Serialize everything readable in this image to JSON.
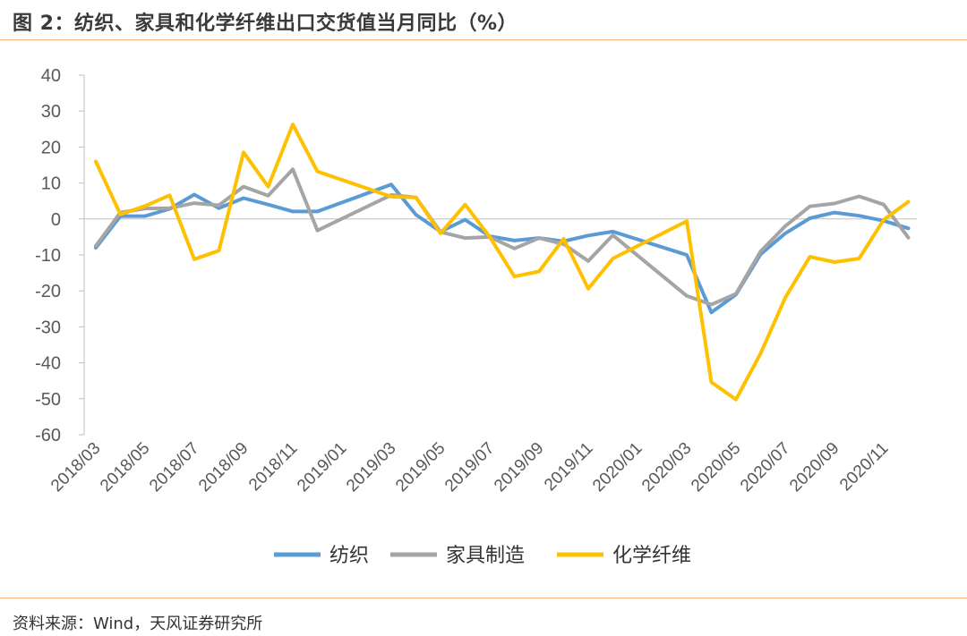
{
  "header": {
    "title": "图 2：纺织、家具和化学纤维出口交货值当月同比（%）"
  },
  "footer": {
    "source": "资料来源：Wind，天风证券研究所"
  },
  "chart_data": {
    "type": "line",
    "title": "图 2：纺织、家具和化学纤维出口交货值当月同比（%）",
    "ylim": [
      -60,
      40
    ],
    "yticks": [
      40,
      30,
      20,
      10,
      0,
      -10,
      -20,
      -30,
      -40,
      -50,
      -60
    ],
    "grid": false,
    "legend_position": "bottom",
    "x": [
      "2018/03",
      "2018/04",
      "2018/05",
      "2018/06",
      "2018/07",
      "2018/08",
      "2018/09",
      "2018/10",
      "2018/11",
      "2018/12",
      "2019/01",
      "2019/02",
      "2019/03",
      "2019/04",
      "2019/05",
      "2019/06",
      "2019/07",
      "2019/08",
      "2019/09",
      "2019/10",
      "2019/11",
      "2019/12",
      "2020/01",
      "2020/02",
      "2020/03",
      "2020/04",
      "2020/05",
      "2020/06",
      "2020/07",
      "2020/08",
      "2020/09",
      "2020/10",
      "2020/11",
      "2020/12"
    ],
    "xtick_labels": [
      "2018/03",
      "2018/05",
      "2018/07",
      "2018/09",
      "2018/11",
      "2019/01",
      "2019/03",
      "2019/05",
      "2019/07",
      "2019/09",
      "2019/11",
      "2020/01",
      "2020/03",
      "2020/05",
      "2020/07",
      "2020/09",
      "2020/11"
    ],
    "series": [
      {
        "name": "纺织",
        "color": "#5b9bd5",
        "values": [
          -8,
          0.8,
          0.8,
          2.8,
          6.8,
          3.0,
          5.8,
          4.0,
          2.1,
          2.1,
          null,
          null,
          9.6,
          1.2,
          -3.5,
          -0.2,
          -4.8,
          -6.0,
          -5.3,
          -6.2,
          -4.6,
          -3.5,
          null,
          null,
          -10.0,
          -26.0,
          -21.0,
          -9.8,
          -4.0,
          0.2,
          1.8,
          0.9,
          -0.5,
          -2.6
        ]
      },
      {
        "name": "家具制造",
        "color": "#a5a5a5",
        "values": [
          -7.5,
          1.8,
          2.9,
          3.0,
          4.4,
          3.8,
          9.0,
          6.5,
          13.8,
          -3.2,
          null,
          null,
          6.7,
          6.0,
          -3.6,
          -5.3,
          -5.0,
          -8.2,
          -5.3,
          -7.0,
          -11.7,
          -4.5,
          null,
          null,
          -21.4,
          -23.8,
          -20.8,
          -9.0,
          -2.0,
          3.5,
          4.3,
          6.3,
          4.0,
          -5.2
        ]
      },
      {
        "name": "化学纤维",
        "color": "#ffc000",
        "values": [
          16.0,
          1.3,
          3.6,
          6.6,
          -11.2,
          -8.8,
          18.5,
          9.0,
          26.3,
          13.2,
          null,
          null,
          6.2,
          6.0,
          -4.0,
          4.0,
          -5.0,
          -16.0,
          -14.6,
          -5.5,
          -19.4,
          -11.0,
          null,
          null,
          -0.6,
          -45.4,
          -50.2,
          -37.4,
          -21.9,
          -10.5,
          -12.0,
          -11.0,
          -0.2,
          4.8
        ]
      }
    ]
  }
}
